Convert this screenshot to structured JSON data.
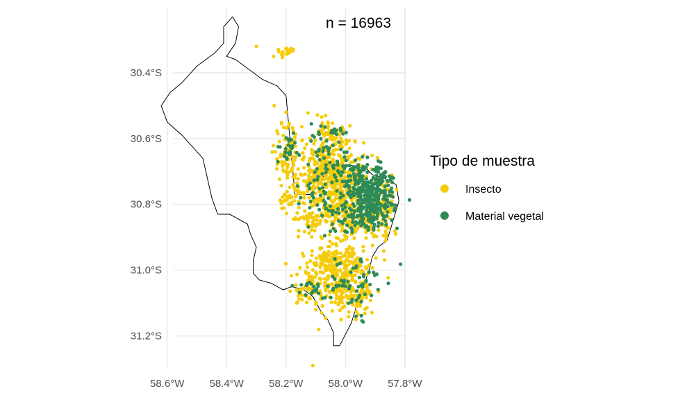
{
  "chart_data": {
    "type": "scatter",
    "title": "",
    "annotation": "n = 16963",
    "xlabel": "",
    "ylabel": "",
    "xlim": [
      -58.625,
      -57.76
    ],
    "ylim": [
      -31.3,
      -30.2
    ],
    "x_ticks": [
      -58.6,
      -58.4,
      -58.2,
      -58.0,
      -57.8
    ],
    "x_tick_labels": [
      "58.6°W",
      "58.4°W",
      "58.2°W",
      "58.0°W",
      "57.8°W"
    ],
    "y_ticks": [
      -30.4,
      -30.6,
      -30.8,
      -31.0,
      -31.2
    ],
    "y_tick_labels": [
      "30.4°S",
      "30.6°S",
      "30.8°S",
      "31.0°S",
      "31.2°S"
    ],
    "grid": true,
    "legend": {
      "title": "Tipo de muestra",
      "placement": "right",
      "entries": [
        {
          "label": "Insecto",
          "color": "#f5cc0b"
        },
        {
          "label": "Material vegetal",
          "color": "#2e8b57"
        }
      ]
    },
    "boundary": {
      "lon": [
        -58.12,
        -58.09,
        -58.07,
        -58.04,
        -57.99,
        -57.93,
        -57.91,
        -57.87,
        -57.83,
        -57.82,
        -57.84,
        -57.86,
        -57.89,
        -57.91,
        -57.92,
        -57.94,
        -57.96,
        -57.98,
        -58.02,
        -58.04,
        -58.04,
        -58.06,
        -58.08,
        -58.11,
        -58.14,
        -58.18,
        -58.21,
        -58.25,
        -58.29,
        -58.31,
        -58.31,
        -58.3,
        -58.32,
        -58.33,
        -58.35,
        -58.37,
        -58.39,
        -58.43,
        -58.45,
        -58.48,
        -58.51,
        -58.55,
        -58.6,
        -58.62,
        -58.59,
        -58.55,
        -58.5,
        -58.44,
        -58.41,
        -58.41,
        -58.38,
        -58.36,
        -58.37,
        -58.4,
        -58.37,
        -58.31,
        -58.28,
        -58.23,
        -58.2,
        -58.17
      ],
      "lat": [
        -30.77,
        -30.74,
        -30.71,
        -30.69,
        -30.68,
        -30.69,
        -30.71,
        -30.72,
        -30.74,
        -30.79,
        -30.85,
        -30.91,
        -30.93,
        -30.96,
        -31.0,
        -31.05,
        -31.1,
        -31.16,
        -31.23,
        -31.23,
        -31.19,
        -31.15,
        -31.13,
        -31.08,
        -31.06,
        -31.05,
        -31.06,
        -31.04,
        -31.03,
        -31.01,
        -30.97,
        -30.93,
        -30.89,
        -30.86,
        -30.85,
        -30.84,
        -30.83,
        -30.83,
        -30.78,
        -30.66,
        -30.63,
        -30.59,
        -30.55,
        -30.5,
        -30.46,
        -30.43,
        -30.38,
        -30.34,
        -30.31,
        -30.26,
        -30.23,
        -30.26,
        -30.31,
        -30.35,
        -30.36,
        -30.4,
        -30.42,
        -30.44,
        -30.47,
        -30.77
      ]
    },
    "series": [
      {
        "name": "Insecto",
        "color": "#f5cc0b",
        "clusters": [
          {
            "lon": -58.03,
            "lat": -30.71,
            "sd_lon": 0.045,
            "sd_lat": 0.05,
            "count": 220
          },
          {
            "lon": -58.02,
            "lat": -30.78,
            "sd_lon": 0.06,
            "sd_lat": 0.05,
            "count": 200
          },
          {
            "lon": -58.11,
            "lat": -30.7,
            "sd_lon": 0.04,
            "sd_lat": 0.06,
            "count": 130
          },
          {
            "lon": -58.2,
            "lat": -30.66,
            "sd_lon": 0.02,
            "sd_lat": 0.05,
            "count": 70
          },
          {
            "lon": -58.05,
            "lat": -30.6,
            "sd_lon": 0.03,
            "sd_lat": 0.025,
            "count": 60
          },
          {
            "lon": -58.19,
            "lat": -30.79,
            "sd_lon": 0.02,
            "sd_lat": 0.02,
            "count": 30
          },
          {
            "lon": -58.11,
            "lat": -30.85,
            "sd_lon": 0.03,
            "sd_lat": 0.02,
            "count": 40
          },
          {
            "lon": -57.96,
            "lat": -30.85,
            "sd_lon": 0.05,
            "sd_lat": 0.03,
            "count": 120
          },
          {
            "lon": -57.87,
            "lat": -30.8,
            "sd_lon": 0.02,
            "sd_lat": 0.05,
            "count": 60
          },
          {
            "lon": -58.02,
            "lat": -31.02,
            "sd_lon": 0.06,
            "sd_lat": 0.045,
            "count": 240
          },
          {
            "lon": -58.04,
            "lat": -30.97,
            "sd_lon": 0.04,
            "sd_lat": 0.02,
            "count": 90
          },
          {
            "lon": -57.98,
            "lat": -31.09,
            "sd_lon": 0.04,
            "sd_lat": 0.03,
            "count": 80
          },
          {
            "lon": -58.14,
            "lat": -31.07,
            "sd_lon": 0.02,
            "sd_lat": 0.02,
            "count": 30
          },
          {
            "lon": -58.21,
            "lat": -30.34,
            "sd_lon": 0.015,
            "sd_lat": 0.006,
            "count": 12
          },
          {
            "lon": -58.19,
            "lat": -30.33,
            "sd_lon": 0.012,
            "sd_lat": 0.005,
            "count": 10
          }
        ],
        "points": [
          {
            "lon": -58.3,
            "lat": -30.32
          },
          {
            "lon": -58.24,
            "lat": -30.5
          },
          {
            "lon": -58.2,
            "lat": -30.52
          },
          {
            "lon": -58.09,
            "lat": -31.18
          },
          {
            "lon": -58.11,
            "lat": -31.29
          },
          {
            "lon": -58.08,
            "lat": -31.13
          },
          {
            "lon": -58.1,
            "lat": -31.12
          }
        ]
      },
      {
        "name": "Material vegetal",
        "color": "#2e8b57",
        "clusters": [
          {
            "lon": -57.91,
            "lat": -30.79,
            "sd_lon": 0.035,
            "sd_lat": 0.04,
            "count": 260
          },
          {
            "lon": -57.97,
            "lat": -30.73,
            "sd_lon": 0.03,
            "sd_lat": 0.03,
            "count": 90
          },
          {
            "lon": -57.88,
            "lat": -30.72,
            "sd_lon": 0.02,
            "sd_lat": 0.02,
            "count": 40
          },
          {
            "lon": -58.0,
            "lat": -30.84,
            "sd_lon": 0.04,
            "sd_lat": 0.03,
            "count": 50
          },
          {
            "lon": -58.2,
            "lat": -30.63,
            "sd_lon": 0.02,
            "sd_lat": 0.02,
            "count": 25
          },
          {
            "lon": -58.07,
            "lat": -30.65,
            "sd_lon": 0.04,
            "sd_lat": 0.04,
            "count": 45
          },
          {
            "lon": -58.08,
            "lat": -30.76,
            "sd_lon": 0.03,
            "sd_lat": 0.03,
            "count": 30
          },
          {
            "lon": -58.05,
            "lat": -30.58,
            "sd_lon": 0.02,
            "sd_lat": 0.02,
            "count": 15
          },
          {
            "lon": -57.98,
            "lat": -31.03,
            "sd_lon": 0.05,
            "sd_lat": 0.04,
            "count": 55
          },
          {
            "lon": -58.12,
            "lat": -31.06,
            "sd_lon": 0.03,
            "sd_lat": 0.02,
            "count": 20
          },
          {
            "lon": -57.95,
            "lat": -31.15,
            "sd_lon": 0.01,
            "sd_lat": 0.01,
            "count": 4
          }
        ],
        "points": []
      }
    ]
  }
}
